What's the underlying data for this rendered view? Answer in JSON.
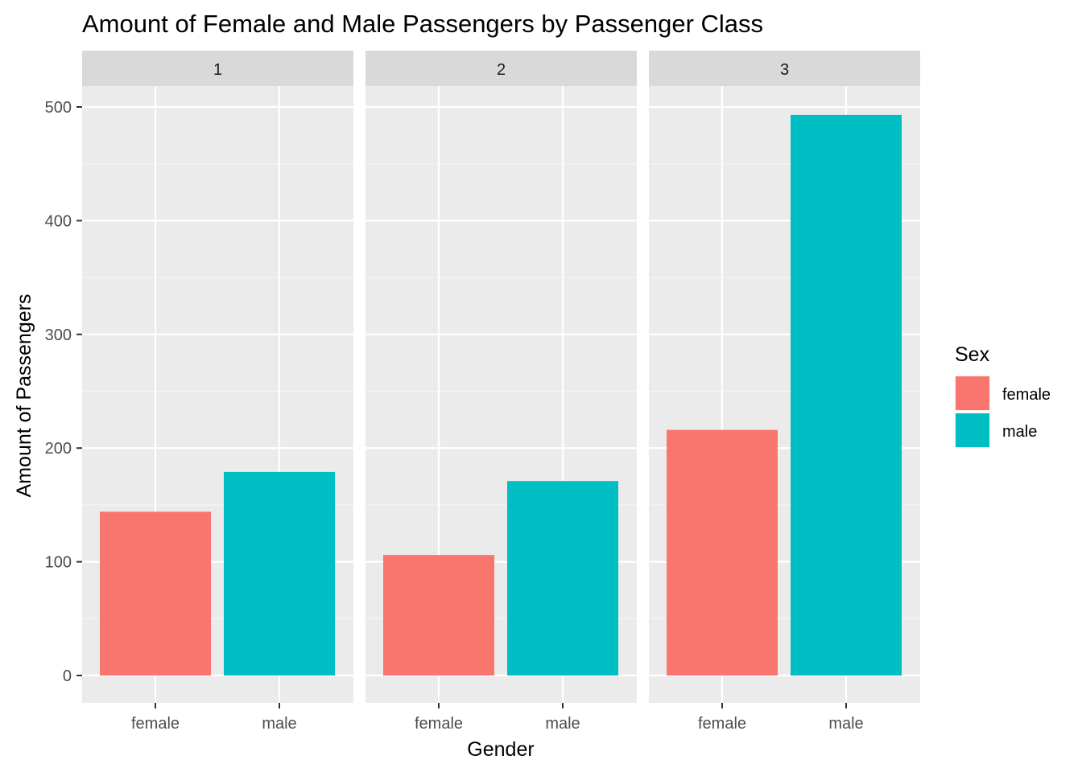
{
  "chart_data": {
    "type": "bar",
    "title": "Amount of Female and Male Passengers by Passenger Class",
    "xlabel": "Gender",
    "ylabel": "Amount of Passengers",
    "facet_labels": [
      "1",
      "2",
      "3"
    ],
    "categories": [
      "female",
      "male"
    ],
    "ylim": [
      0,
      525
    ],
    "yticks": [
      0,
      100,
      200,
      300,
      400,
      500
    ],
    "grid": true,
    "legend": {
      "title": "Sex",
      "placement": "right",
      "entries": [
        "female",
        "male"
      ]
    },
    "colors": {
      "female": "#F8766D",
      "male": "#00BFC4"
    },
    "facets": [
      {
        "label": "1",
        "values": [
          144,
          179
        ]
      },
      {
        "label": "2",
        "values": [
          106,
          171
        ]
      },
      {
        "label": "3",
        "values": [
          216,
          493
        ]
      }
    ]
  }
}
